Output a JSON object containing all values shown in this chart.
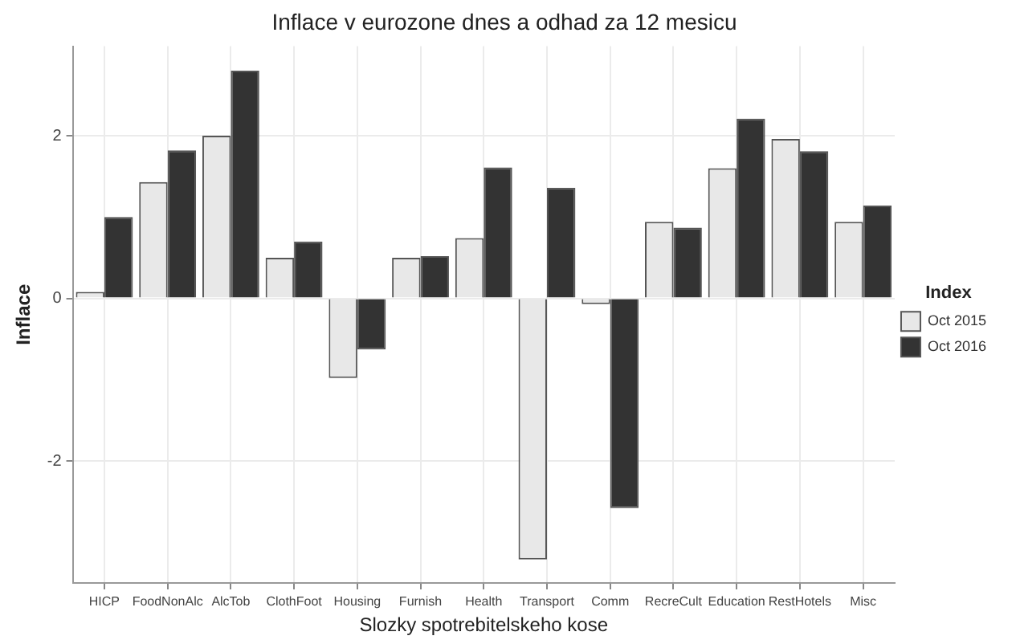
{
  "chart_data": {
    "type": "bar",
    "title": "Inflace v eurozone dnes a odhad za 12 mesicu",
    "xlabel": "Slozky spotrebitelskeho kose",
    "ylabel": "Inflace",
    "legend_title": "Index",
    "categories": [
      "HICP",
      "FoodNonAlc",
      "AlcTob",
      "ClothFoot",
      "Housing",
      "Furnish",
      "Health",
      "Transport",
      "Comm",
      "RecreCult",
      "Education",
      "RestHotels",
      "Misc"
    ],
    "series": [
      {
        "name": "Oct 2015",
        "color": "#e8e8e8",
        "values": [
          0.08,
          1.43,
          2.0,
          0.5,
          -0.98,
          0.5,
          0.74,
          -3.21,
          -0.07,
          0.94,
          1.6,
          1.96,
          0.94
        ]
      },
      {
        "name": "Oct 2016",
        "color": "#333333",
        "values": [
          1.0,
          1.82,
          2.8,
          0.7,
          -0.63,
          0.52,
          1.61,
          1.36,
          -2.58,
          0.87,
          2.21,
          1.81,
          1.14
        ]
      }
    ],
    "ylim": [
      -3.5,
      3.1
    ],
    "yticks": [
      -2,
      0,
      2
    ],
    "grid": true,
    "legend": "right"
  }
}
